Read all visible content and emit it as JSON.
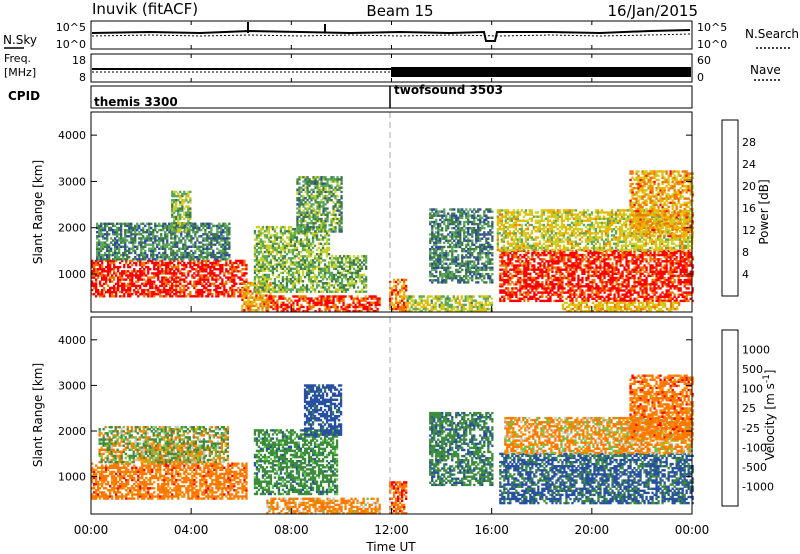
{
  "header": {
    "station": "Inuvik (fitACF)",
    "beam": "Beam 15",
    "date": "16/Jan/2015"
  },
  "noise_panel": {
    "left_label": "N.Sky",
    "right_label": "N.Search",
    "left_ticks": [
      "10^5",
      "10^0"
    ],
    "right_ticks": [
      "10^5",
      "10^0"
    ]
  },
  "freq_panel": {
    "left_label_1": "Freq.",
    "left_label_2": "[MHz]",
    "right_label": "Nave",
    "left_ticks": [
      "18",
      "8"
    ],
    "right_ticks": [
      "60",
      "0"
    ]
  },
  "cpid_panel": {
    "label": "CPID",
    "modes": [
      {
        "name": "themis 3300",
        "start_hour": 0
      },
      {
        "name": "twofsound 3503",
        "start_hour": 12
      }
    ]
  },
  "power_panel": {
    "ylabel": "Slant Range [km]",
    "yticks": [
      "1000",
      "2000",
      "3000",
      "4000"
    ],
    "colorbar_label": "Power [dB]",
    "colorbar_ticks": [
      "28",
      "24",
      "20",
      "16",
      "12",
      "8",
      "4"
    ]
  },
  "velocity_panel": {
    "ylabel": "Slant Range [km]",
    "yticks": [
      "1000",
      "2000",
      "3000",
      "4000"
    ],
    "colorbar_label": "Velocity [m s",
    "colorbar_label_sup": "-1",
    "colorbar_label_end": "]",
    "colorbar_ticks": [
      "1000",
      "500",
      "100",
      "25",
      "-25",
      "-100",
      "-500",
      "-1000"
    ]
  },
  "xaxis": {
    "label": "Time UT",
    "ticks": [
      "00:00",
      "04:00",
      "08:00",
      "12:00",
      "16:00",
      "20:00",
      "00:00"
    ]
  },
  "colors": {
    "power_scale": [
      "#0000ff",
      "#2f46a8",
      "#3d7a45",
      "#5aa65a",
      "#c8d22a",
      "#f0b400",
      "#f07800",
      "#ff0000"
    ],
    "velocity_scale": [
      "#ff0000",
      "#ff7800",
      "#f0a000",
      "#c8c8c8",
      "#64c850",
      "#3c8c3c",
      "#2850a0",
      "#0000ff"
    ]
  },
  "chart_data": {
    "type": "heatmap",
    "x_range_hours": [
      0,
      24
    ],
    "y_range_km": [
      180,
      4500
    ],
    "power_range_db": [
      0,
      30
    ],
    "velocity_range_ms": [
      -1000,
      1000
    ],
    "power_regions": [
      {
        "t": [
          0.0,
          6.2
        ],
        "r": [
          500,
          1300
        ],
        "db": 28
      },
      {
        "t": [
          0.2,
          5.5
        ],
        "r": [
          1300,
          2100
        ],
        "db": 10
      },
      {
        "t": [
          3.2,
          4.0
        ],
        "r": [
          1900,
          2800
        ],
        "db": 14
      },
      {
        "t": [
          6.0,
          7.2
        ],
        "r": [
          200,
          800
        ],
        "db": 22
      },
      {
        "t": [
          6.5,
          9.5
        ],
        "r": [
          600,
          2000
        ],
        "db": 14
      },
      {
        "t": [
          8.2,
          10.0
        ],
        "r": [
          1900,
          3100
        ],
        "db": 12
      },
      {
        "t": [
          7.0,
          11.5
        ],
        "r": [
          180,
          500
        ],
        "db": 27
      },
      {
        "t": [
          9.5,
          11.0
        ],
        "r": [
          600,
          1400
        ],
        "db": 13
      },
      {
        "t": [
          11.9,
          12.6
        ],
        "r": [
          180,
          900
        ],
        "db": 24
      },
      {
        "t": [
          13.5,
          16.0
        ],
        "r": [
          800,
          2400
        ],
        "db": 10
      },
      {
        "t": [
          12.6,
          16.0
        ],
        "r": [
          180,
          500
        ],
        "db": 16
      },
      {
        "t": [
          16.3,
          24.0
        ],
        "r": [
          400,
          1500
        ],
        "db": 28
      },
      {
        "t": [
          16.2,
          24.0
        ],
        "r": [
          1500,
          2400
        ],
        "db": 18
      },
      {
        "t": [
          21.5,
          24.0
        ],
        "r": [
          1800,
          3200
        ],
        "db": 22
      },
      {
        "t": [
          18.8,
          23.5
        ],
        "r": [
          180,
          400
        ],
        "db": 20
      }
    ],
    "velocity_regions": [
      {
        "t": [
          0.0,
          6.2
        ],
        "r": [
          500,
          1300
        ],
        "v": -300
      },
      {
        "t": [
          0.3,
          5.5
        ],
        "r": [
          1300,
          2100
        ],
        "v": 60
      },
      {
        "t": [
          2.0,
          4.5
        ],
        "r": [
          1300,
          1700
        ],
        "v": 0
      },
      {
        "t": [
          6.5,
          9.8
        ],
        "r": [
          600,
          2000
        ],
        "v": 300
      },
      {
        "t": [
          8.5,
          10.0
        ],
        "r": [
          1900,
          3000
        ],
        "v": 700
      },
      {
        "t": [
          7.0,
          11.5
        ],
        "r": [
          180,
          500
        ],
        "v": -200
      },
      {
        "t": [
          11.9,
          12.6
        ],
        "r": [
          180,
          900
        ],
        "v": -400
      },
      {
        "t": [
          13.5,
          16.0
        ],
        "r": [
          800,
          2400
        ],
        "v": 400
      },
      {
        "t": [
          16.3,
          24.0
        ],
        "r": [
          400,
          1500
        ],
        "v": 600
      },
      {
        "t": [
          16.5,
          24.0
        ],
        "r": [
          1500,
          2300
        ],
        "v": -150
      },
      {
        "t": [
          21.5,
          24.0
        ],
        "r": [
          1800,
          3200
        ],
        "v": -300
      }
    ]
  }
}
